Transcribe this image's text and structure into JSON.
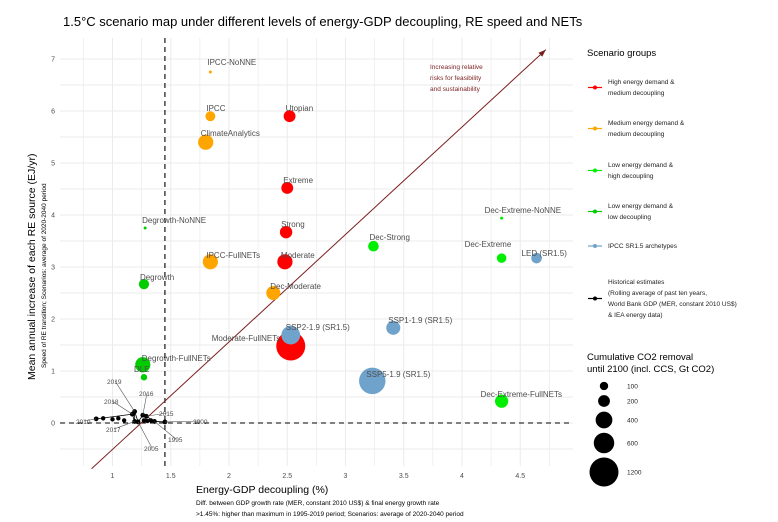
{
  "chart_data": {
    "type": "scatter",
    "title": "1.5°C scenario map under different levels of energy-GDP decoupling, RE speed and NETs",
    "xlabel": "Energy-GDP decoupling (%)",
    "xlabel_sub": [
      "Diff. between GDP growth rate (MER, constant 2010 US$) & final energy growth rate",
      ">1.45%: higher than maximum in 1995-2019 period; Scenarios: average of 2020-2040 period"
    ],
    "ylabel": "Mean annual increase of each RE source (EJ/yr)",
    "ylabel_sub": "Speed of RE transition; Scenarios: average of 2020-2040 period",
    "xlim": [
      0.68,
      4.88
    ],
    "ylim": [
      -0.85,
      7.35
    ],
    "x_ticks": [
      1,
      1.5,
      2,
      2.5,
      3,
      3.5,
      4,
      4.5
    ],
    "x_tick_labels": [
      "1",
      "1.5",
      "2",
      "2.5",
      "3",
      "3.5",
      "4",
      "4.5"
    ],
    "y_ticks": [
      0,
      1,
      2,
      3,
      4,
      5,
      6,
      7
    ],
    "y_tick_labels": [
      "0",
      "1",
      "2",
      "3",
      "4",
      "5",
      "6",
      "7"
    ],
    "grid": true,
    "reference_lines": {
      "x": 1.45,
      "y": 0,
      "style": "dashed"
    },
    "arrow": {
      "from": [
        0.82,
        -0.88
      ],
      "to": [
        4.72,
        7.18
      ],
      "color": "#7b1f1f"
    },
    "annotation": [
      "Increasing relative",
      "risks for feasibility",
      "and sustainability"
    ],
    "groups": {
      "high": {
        "label": "High energy demand & medium decoupling",
        "color": "#ff0000"
      },
      "medium": {
        "label": "Medium energy demand & medium decoupling",
        "color": "#ffa500"
      },
      "lowhigh": {
        "label": "Low energy demand & high decoupling",
        "color": "#00ee00"
      },
      "lowlow": {
        "label": "Low energy demand & low decoupling",
        "color": "#00cc00"
      },
      "ipcc": {
        "label": "IPCC SR1.5 archetypes",
        "color": "#6fa3cc"
      },
      "hist": {
        "label": "Historical estimates (Rolling average of past ten years, World Bank GDP (MER, constant 2010 US$) & IEA energy data)",
        "color": "#000000"
      }
    },
    "legend_title": "Scenario groups",
    "legend_items": [
      {
        "group": "high",
        "lines": [
          "High energy demand &",
          "medium decoupling"
        ]
      },
      {
        "group": "medium",
        "lines": [
          "Medium energy demand &",
          "medium decoupling"
        ]
      },
      {
        "group": "lowhigh",
        "lines": [
          "Low energy demand &",
          "high decoupling"
        ]
      },
      {
        "group": "lowlow",
        "lines": [
          "Low energy demand &",
          "low decoupling"
        ]
      },
      {
        "group": "ipcc",
        "lines": [
          "IPCC SR1.5 archetypes"
        ]
      },
      {
        "group": "hist",
        "lines": [
          "Historical estimates",
          "(Rolling average of past ten years,",
          "World Bank GDP (MER, constant 2010 US$)",
          "& IEA energy data)"
        ]
      }
    ],
    "legend_placement": "right",
    "size_legend_title": [
      "Cumulative CO2 removal",
      "until 2100 (incl. CCS, Gt CO2)"
    ],
    "size_legend": [
      100,
      200,
      400,
      600,
      1200
    ],
    "scenarios": [
      {
        "name": "IPCC-NoNNE",
        "group": "medium",
        "x": 1.84,
        "y": 6.75,
        "co2": 5
      },
      {
        "name": "IPCC",
        "group": "medium",
        "x": 1.84,
        "y": 5.9,
        "co2": 140
      },
      {
        "name": "Utopian",
        "group": "high",
        "x": 2.52,
        "y": 5.9,
        "co2": 200
      },
      {
        "name": "ClimateAnalytics",
        "group": "medium",
        "x": 1.8,
        "y": 5.4,
        "co2": 330
      },
      {
        "name": "Extreme",
        "group": "high",
        "x": 2.5,
        "y": 4.52,
        "co2": 200
      },
      {
        "name": "Degrowth-NoNNE",
        "group": "lowlow",
        "x": 1.28,
        "y": 3.75,
        "co2": 5
      },
      {
        "name": "Strong",
        "group": "high",
        "x": 2.49,
        "y": 3.67,
        "co2": 220
      },
      {
        "name": "Dec-Strong",
        "group": "lowhigh",
        "x": 3.24,
        "y": 3.4,
        "co2": 160
      },
      {
        "name": "Dec-Extreme-NoNNE",
        "group": "lowhigh",
        "x": 4.34,
        "y": 3.94,
        "co2": 3
      },
      {
        "name": "Dec-Extreme",
        "group": "lowhigh",
        "x": 4.34,
        "y": 3.17,
        "co2": 130
      },
      {
        "name": "LED (SR1.5)",
        "group": "ipcc",
        "x": 4.64,
        "y": 3.17,
        "co2": 160
      },
      {
        "name": "IPCC-FullNETs",
        "group": "medium",
        "x": 1.84,
        "y": 3.1,
        "co2": 330
      },
      {
        "name": "Moderate",
        "group": "high",
        "x": 2.48,
        "y": 3.1,
        "co2": 330
      },
      {
        "name": "Degrowth",
        "group": "lowlow",
        "x": 1.27,
        "y": 2.67,
        "co2": 150
      },
      {
        "name": "Dec-Moderate",
        "group": "medium",
        "x": 2.38,
        "y": 2.5,
        "co2": 280
      },
      {
        "name": "SSP1-1.9 (SR1.5)",
        "group": "ipcc",
        "x": 3.41,
        "y": 1.83,
        "co2": 280
      },
      {
        "name": "Moderate-FullNETs",
        "group": "high",
        "x": 2.53,
        "y": 1.48,
        "co2": 1200
      },
      {
        "name": "SSP2-1.9 (SR1.5)",
        "group": "ipcc",
        "x": 2.53,
        "y": 1.69,
        "co2": 500
      },
      {
        "name": "Degrowth-FullNETs",
        "group": "lowlow",
        "x": 1.26,
        "y": 1.12,
        "co2": 330
      },
      {
        "name": "DLE",
        "group": "lowlow",
        "x": 1.27,
        "y": 0.88,
        "co2": 60
      },
      {
        "name": "SSP5-1.9 (SR1.5)",
        "group": "ipcc",
        "x": 3.23,
        "y": 0.81,
        "co2": 1000
      },
      {
        "name": "Dec-Extreme-FullNETs",
        "group": "lowhigh",
        "x": 4.34,
        "y": 0.42,
        "co2": 250
      }
    ],
    "historical": [
      {
        "year": "1995",
        "x": 1.36,
        "y": 0.03
      },
      {
        "year": "2000",
        "x": 1.45,
        "y": 0.02
      },
      {
        "year": "2005",
        "x": 1.22,
        "y": 0.02
      },
      {
        "year": "2010",
        "x": 0.86,
        "y": 0.08
      },
      {
        "year": "2015",
        "x": 1.29,
        "y": 0.13
      },
      {
        "year": "2016",
        "x": 1.26,
        "y": 0.15
      },
      {
        "year": "2017",
        "x": 1.19,
        "y": 0.03
      },
      {
        "year": "2018",
        "x": 1.17,
        "y": 0.17
      },
      {
        "year": "2019",
        "x": 1.19,
        "y": 0.22
      }
    ]
  }
}
